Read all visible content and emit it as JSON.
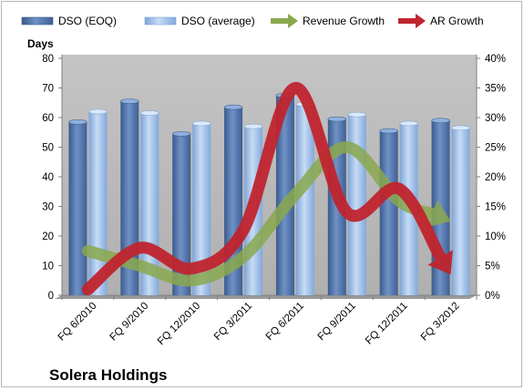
{
  "chart_data": {
    "type": "bar",
    "title": "Solera Holdings",
    "ylabel": "Days",
    "categories": [
      "FQ 6/2010",
      "FQ 9/2010",
      "FQ 12/2010",
      "FQ 3/2011",
      "FQ 6/2011",
      "FQ 9/2011",
      "FQ 12/2011",
      "FQ 3/2012"
    ],
    "ylim": [
      0,
      80
    ],
    "y_ticks": [
      "0",
      "10",
      "20",
      "30",
      "40",
      "50",
      "60",
      "70",
      "80"
    ],
    "y2lim": [
      0,
      40
    ],
    "y2_ticks": [
      "0%",
      "5%",
      "10%",
      "15%",
      "20%",
      "25%",
      "30%",
      "35%",
      "40%"
    ],
    "grid": false,
    "legend_position": "top",
    "series": [
      {
        "name": "DSO (EOQ)",
        "kind": "bar",
        "axis": "left",
        "color": "#4a6ea8",
        "values": [
          58.5,
          65.5,
          54.5,
          63.5,
          67.5,
          59.5,
          55.5,
          59
        ]
      },
      {
        "name": "DSO (average)",
        "kind": "bar",
        "axis": "left",
        "color": "#8db3e2",
        "values": [
          62,
          61.5,
          58,
          57,
          64.5,
          61,
          58,
          56.5
        ]
      },
      {
        "name": "Revenue Growth",
        "kind": "arrow",
        "axis": "right",
        "color": "#8aa84e",
        "values": [
          7.5,
          5,
          2.5,
          6.5,
          17,
          25,
          16,
          12.5
        ]
      },
      {
        "name": "AR Growth",
        "kind": "arrow",
        "axis": "right",
        "color": "#c0242e",
        "values": [
          1,
          8,
          4.5,
          11,
          35,
          14,
          18,
          3.5
        ]
      }
    ]
  }
}
